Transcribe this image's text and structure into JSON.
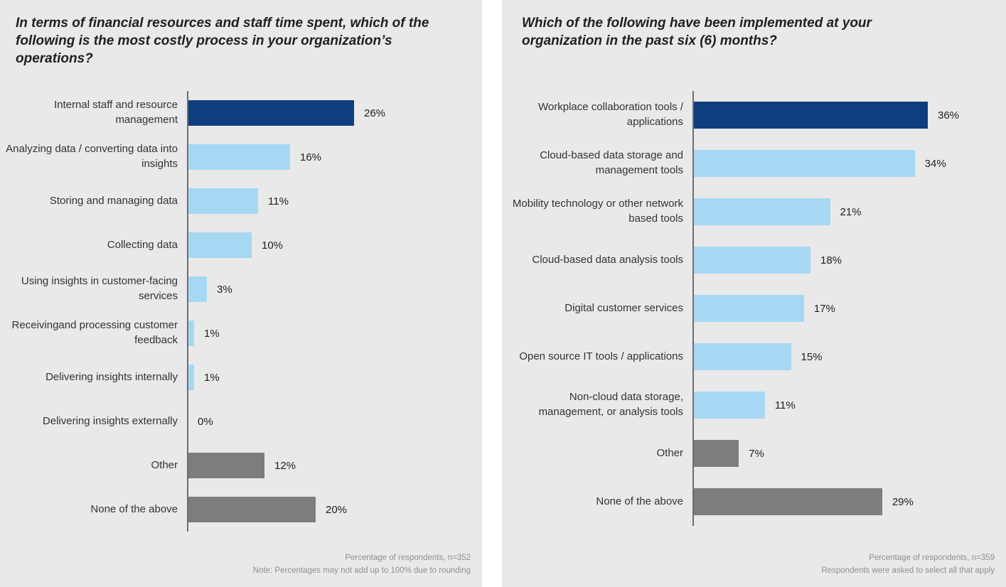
{
  "palette": {
    "primary_dark_blue": "#0e3e7d",
    "light_blue": "#a6d8f4",
    "neutral_gray": "#7d7d7d",
    "panel_background": "#e9e9e9",
    "axis_line": "#6e6e6e"
  },
  "chart_data": [
    {
      "type": "bar",
      "orientation": "horizontal",
      "title": "In terms of financial resources and staff time spent, which of the following is the most costly process in your organization’s operations?",
      "categories": [
        "Internal staff and resource management",
        "Analyzing data / converting data into insights",
        "Storing and managing data",
        "Collecting data",
        "Using insights in customer-facing services",
        "Receivingand processing customer feedback",
        "Delivering insights internally",
        "Delivering insights externally",
        "Other",
        "None of the above"
      ],
      "values": [
        26,
        16,
        11,
        10,
        3,
        1,
        1,
        0,
        12,
        20
      ],
      "value_suffix": "%",
      "color_roles": [
        "primary_dark_blue",
        "light_blue",
        "light_blue",
        "light_blue",
        "light_blue",
        "light_blue",
        "light_blue",
        "light_blue",
        "neutral_gray",
        "neutral_gray"
      ],
      "xlim": [
        0,
        46
      ],
      "grid": false,
      "legend": "none",
      "footnotes": [
        "Percentage of respondents, n=352",
        "Note: Percentages may not add up to 100% due to rounding"
      ]
    },
    {
      "type": "bar",
      "orientation": "horizontal",
      "title": "Which of the following have been implemented at your organization in the past six (6) months?",
      "categories": [
        "Workplace collaboration tools / applications",
        "Cloud-based data storage and management tools",
        "Mobility technology or other network based tools",
        "Cloud-based data analysis tools",
        "Digital customer services",
        "Open source IT tools / applications",
        "Non-cloud data storage, management, or analysis tools",
        "Other",
        "None of the above"
      ],
      "values": [
        36,
        34,
        21,
        18,
        17,
        15,
        11,
        7,
        29
      ],
      "value_suffix": "%",
      "color_roles": [
        "primary_dark_blue",
        "light_blue",
        "light_blue",
        "light_blue",
        "light_blue",
        "light_blue",
        "light_blue",
        "neutral_gray",
        "neutral_gray"
      ],
      "xlim": [
        0,
        48
      ],
      "grid": false,
      "legend": "none",
      "footnotes": [
        "Percentage of respondents, n=359",
        "Respondents were asked to select all that apply"
      ]
    }
  ]
}
